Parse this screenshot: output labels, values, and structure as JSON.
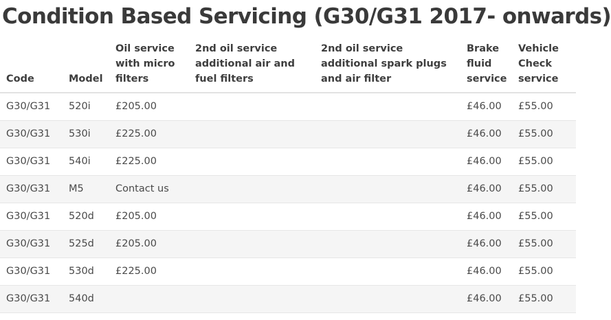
{
  "page": {
    "title": "Condition Based Servicing (G30/G31 2017- onwards)"
  },
  "table": {
    "headers": [
      "Code",
      "Model",
      "Oil service with micro filters",
      "2nd oil service additional air and fuel filters",
      "2nd oil service additional spark plugs and air filter",
      "Brake fluid service",
      "Vehicle Check service"
    ],
    "rows": [
      [
        "G30/G31",
        "520i",
        "£205.00",
        "",
        "",
        "£46.00",
        "£55.00"
      ],
      [
        "G30/G31",
        "530i",
        "£225.00",
        "",
        "",
        "£46.00",
        "£55.00"
      ],
      [
        "G30/G31",
        "540i",
        "£225.00",
        "",
        "",
        "£46.00",
        "£55.00"
      ],
      [
        "G30/G31",
        "M5",
        "Contact us",
        "",
        "",
        "£46.00",
        "£55.00"
      ],
      [
        "G30/G31",
        "520d",
        "£205.00",
        "",
        "",
        "£46.00",
        "£55.00"
      ],
      [
        "G30/G31",
        "525d",
        "£205.00",
        "",
        "",
        "£46.00",
        "£55.00"
      ],
      [
        "G30/G31",
        "530d",
        "£225.00",
        "",
        "",
        "£46.00",
        "£55.00"
      ],
      [
        "G30/G31",
        "540d",
        "",
        "",
        "",
        "£46.00",
        "£55.00"
      ]
    ]
  }
}
